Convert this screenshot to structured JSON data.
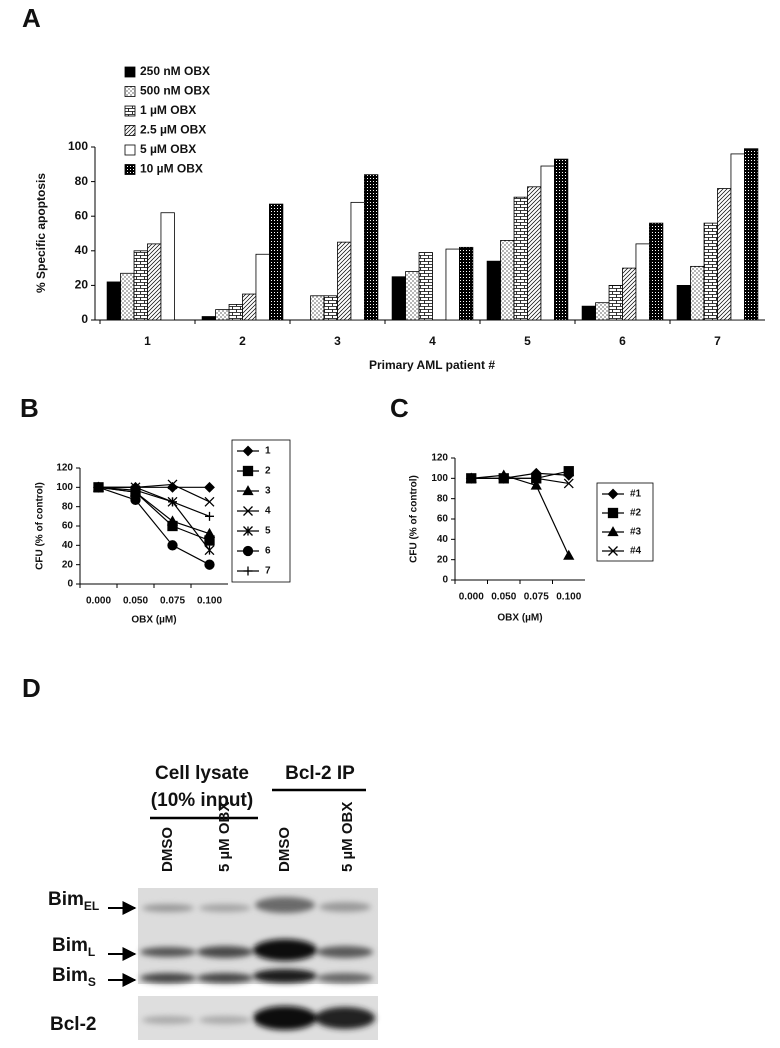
{
  "chart_data": [
    {
      "type": "bar",
      "label": "A",
      "ylabel": "% Specific apoptosis",
      "xlabel": "Primary AML patient #",
      "categories": [
        "1",
        "2",
        "3",
        "4",
        "5",
        "6",
        "7"
      ],
      "series": [
        {
          "name": "250 nM OBX",
          "color": "#000000",
          "values": [
            22,
            2,
            null,
            25,
            34,
            8,
            20
          ]
        },
        {
          "name": "500 nM OBX",
          "color": "#000000",
          "values": [
            27,
            6,
            14,
            28,
            46,
            10,
            31
          ]
        },
        {
          "name": "1 µM OBX",
          "color": "#000000",
          "values": [
            40,
            9,
            14,
            39,
            71,
            20,
            56
          ]
        },
        {
          "name": "2.5 µM OBX",
          "color": "#000000",
          "values": [
            44,
            15,
            45,
            null,
            77,
            30,
            76
          ]
        },
        {
          "name": "5 µM OBX",
          "color": "#000000",
          "values": [
            62,
            38,
            68,
            41,
            89,
            44,
            96
          ]
        },
        {
          "name": "10 µM OBX",
          "color": "#000000",
          "values": [
            null,
            67,
            84,
            42,
            93,
            56,
            99
          ]
        }
      ],
      "ylim": [
        0,
        100
      ],
      "yticks": [
        0,
        20,
        40,
        60,
        80,
        100
      ],
      "legend": "upper-left"
    },
    {
      "type": "line",
      "label": "B",
      "ylabel": "CFU (% of control)",
      "xlabel": "OBX (µM)",
      "categories": [
        "0.000",
        "0.050",
        "0.075",
        "0.100"
      ],
      "series": [
        {
          "name": "1",
          "color": "#000000",
          "marker": "diamond",
          "values": [
            100,
            100,
            100,
            100
          ]
        },
        {
          "name": "2",
          "color": "#000000",
          "marker": "square",
          "values": [
            100,
            95,
            60,
            45
          ]
        },
        {
          "name": "3",
          "color": "#000000",
          "marker": "triangle",
          "values": [
            100,
            95,
            65,
            52
          ]
        },
        {
          "name": "4",
          "color": "#000000",
          "marker": "x",
          "values": [
            100,
            100,
            103,
            85
          ]
        },
        {
          "name": "5",
          "color": "#000000",
          "marker": "asterisk",
          "values": [
            100,
            97,
            85,
            35
          ]
        },
        {
          "name": "6",
          "color": "#000000",
          "marker": "circle",
          "values": [
            100,
            87,
            40,
            20
          ]
        },
        {
          "name": "7",
          "color": "#000000",
          "marker": "plus",
          "values": [
            100,
            100,
            85,
            70
          ]
        }
      ],
      "ylim": [
        0,
        120
      ],
      "yticks": [
        0,
        20,
        40,
        60,
        80,
        100,
        120
      ],
      "legend": "right"
    },
    {
      "type": "line",
      "label": "C",
      "ylabel": "CFU (% of control)",
      "xlabel": "OBX (µM)",
      "categories": [
        "0.000",
        "0.050",
        "0.075",
        "0.100"
      ],
      "series": [
        {
          "name": "#1",
          "color": "#000000",
          "marker": "diamond",
          "values": [
            100,
            100,
            105,
            103
          ]
        },
        {
          "name": "#2",
          "color": "#000000",
          "marker": "square",
          "values": [
            100,
            100,
            100,
            107
          ]
        },
        {
          "name": "#3",
          "color": "#000000",
          "marker": "triangle",
          "values": [
            100,
            103,
            93,
            24
          ]
        },
        {
          "name": "#4",
          "color": "#000000",
          "marker": "x",
          "values": [
            100,
            100,
            100,
            95
          ]
        }
      ],
      "ylim": [
        0,
        120
      ],
      "yticks": [
        0,
        20,
        40,
        60,
        80,
        100,
        120
      ],
      "legend": "right"
    }
  ],
  "blot": {
    "label": "D",
    "groups": [
      {
        "lines": [
          "Cell lysate",
          "(10% input)"
        ]
      },
      {
        "lines": [
          "Bcl-2 IP"
        ]
      }
    ],
    "lanes": [
      "DMSO",
      "5 µM OBX",
      "DMSO",
      "5 µM OBX"
    ],
    "bands": [
      {
        "name": "Bim",
        "sub": "EL"
      },
      {
        "name": "Bim",
        "sub": "L"
      },
      {
        "name": "Bim",
        "sub": "S"
      }
    ],
    "loading": "Bcl-2"
  }
}
